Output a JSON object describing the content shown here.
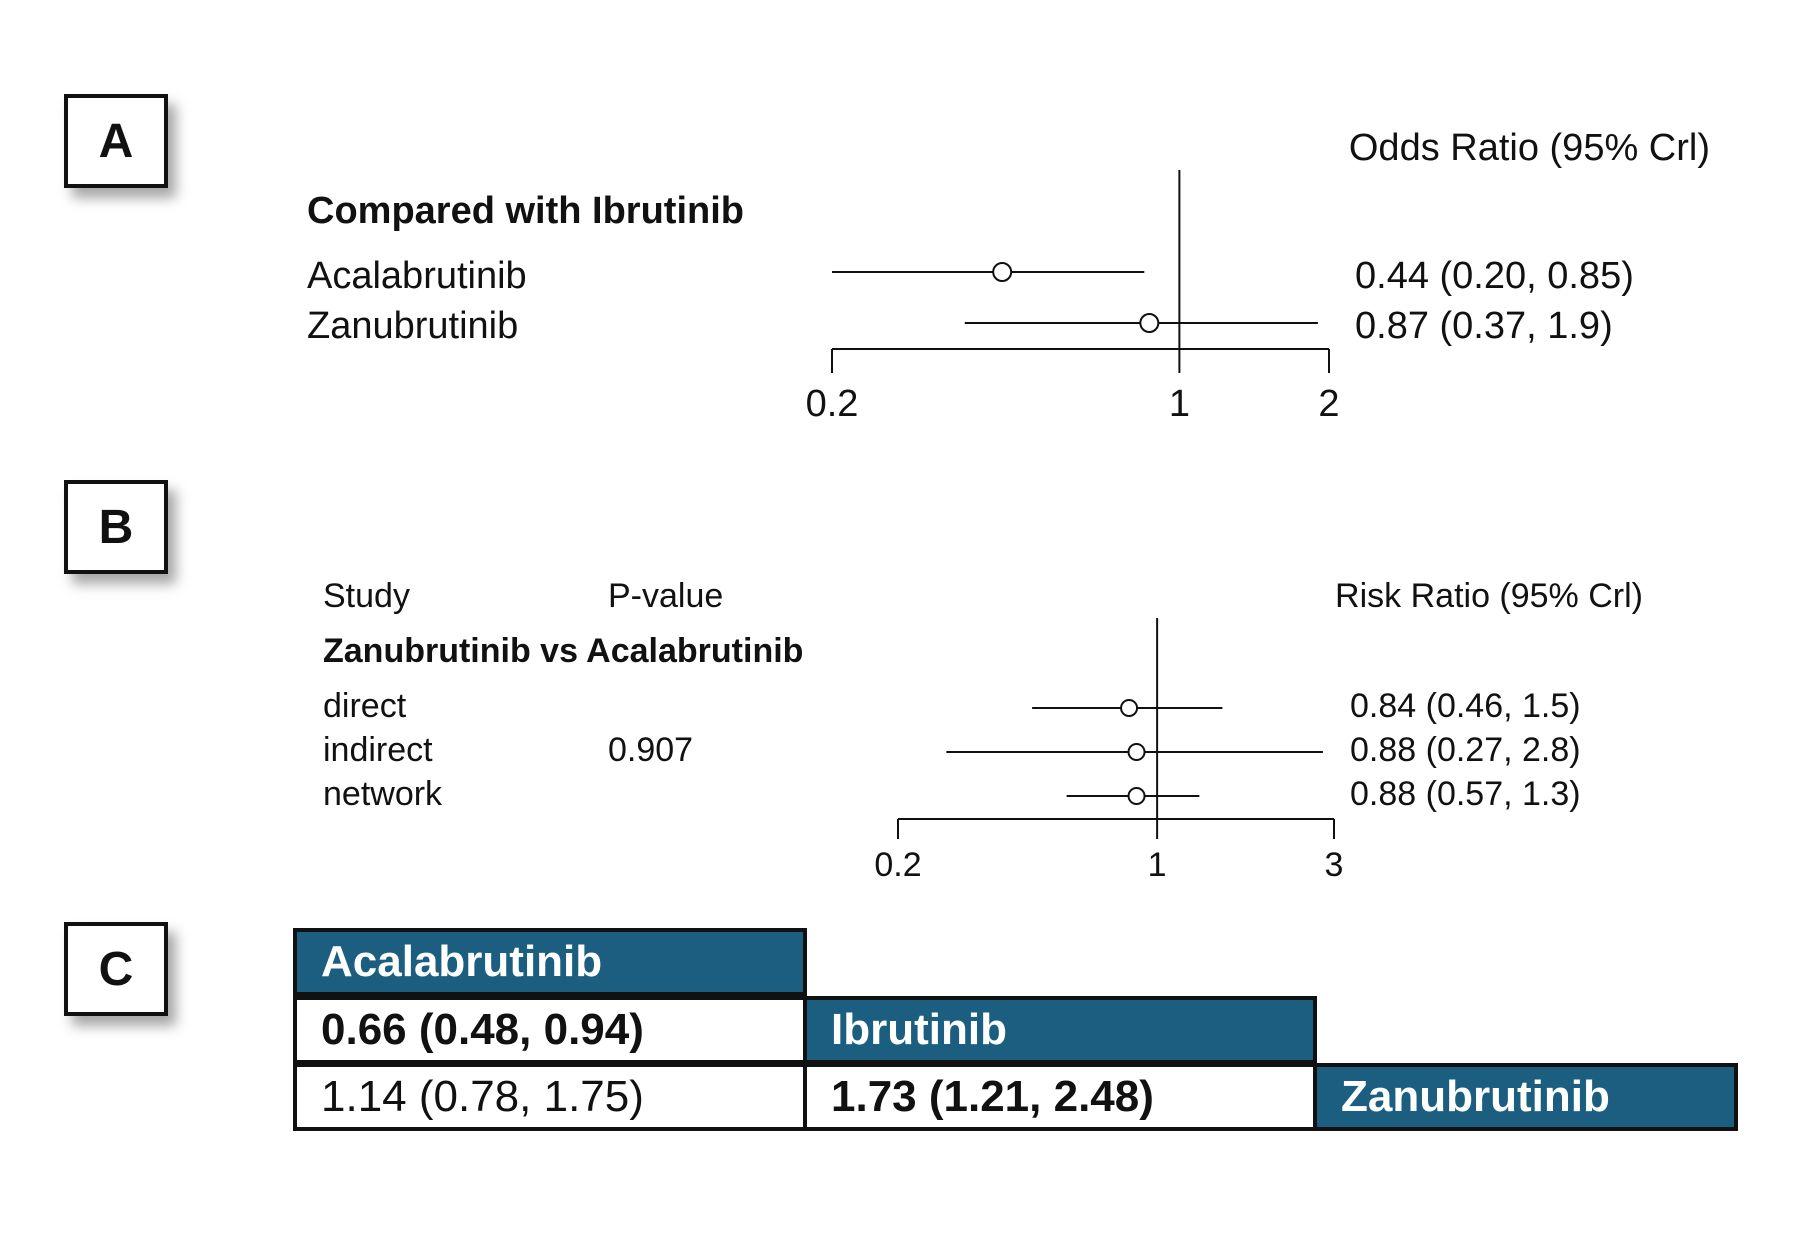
{
  "panels": {
    "a": {
      "label": "A"
    },
    "b": {
      "label": "B"
    },
    "c": {
      "label": "C"
    }
  },
  "chart_data": [
    {
      "type": "forest",
      "panel": "A",
      "effect_label": "Odds Ratio (95% Crl)",
      "group_title": "Compared with Ibrutinib",
      "scale": "log",
      "xlim": [
        0.2,
        2
      ],
      "ticks": [
        {
          "value": 0.2,
          "label": "0.2"
        },
        {
          "value": 1,
          "label": "1"
        },
        {
          "value": 2,
          "label": "2"
        }
      ],
      "reference": 1,
      "rows": [
        {
          "name": "Acalabrutinib",
          "estimate": 0.44,
          "lower": 0.2,
          "upper": 0.85,
          "text": "0.44 (0.20, 0.85)"
        },
        {
          "name": "Zanubrutinib",
          "estimate": 0.87,
          "lower": 0.37,
          "upper": 1.9,
          "text": "0.87 (0.37, 1.9)"
        }
      ]
    },
    {
      "type": "forest",
      "panel": "B",
      "study_header": "Study",
      "pvalue_header": "P-value",
      "effect_label": "Risk Ratio (95% Crl)",
      "group_title": "Zanubrutinib vs Acalabrutinib",
      "scale": "log",
      "xlim": [
        0.2,
        3
      ],
      "ticks": [
        {
          "value": 0.2,
          "label": "0.2"
        },
        {
          "value": 1,
          "label": "1"
        },
        {
          "value": 3,
          "label": "3"
        }
      ],
      "reference": 1,
      "rows": [
        {
          "name": "direct",
          "pvalue": "",
          "estimate": 0.84,
          "lower": 0.46,
          "upper": 1.5,
          "text": "0.84 (0.46, 1.5)"
        },
        {
          "name": "indirect",
          "pvalue": "0.907",
          "estimate": 0.88,
          "lower": 0.27,
          "upper": 2.8,
          "text": "0.88 (0.27, 2.8)"
        },
        {
          "name": "network",
          "pvalue": "",
          "estimate": 0.88,
          "lower": 0.57,
          "upper": 1.3,
          "text": "0.88 (0.57, 1.3)"
        }
      ]
    },
    {
      "type": "table",
      "panel": "C",
      "treatments": [
        "Acalabrutinib",
        "Ibrutinib",
        "Zanubrutinib"
      ],
      "cells": [
        {
          "row": 1,
          "col": 0,
          "text": "0.66 (0.48, 0.94)",
          "bold": true
        },
        {
          "row": 2,
          "col": 0,
          "text": "1.14 (0.78, 1.75)",
          "bold": false
        },
        {
          "row": 2,
          "col": 1,
          "text": "1.73 (1.21, 2.48)",
          "bold": true
        }
      ]
    }
  ],
  "colors": {
    "header_bg": "#1b5e80",
    "header_text": "#ffffff",
    "line": "#111111"
  }
}
